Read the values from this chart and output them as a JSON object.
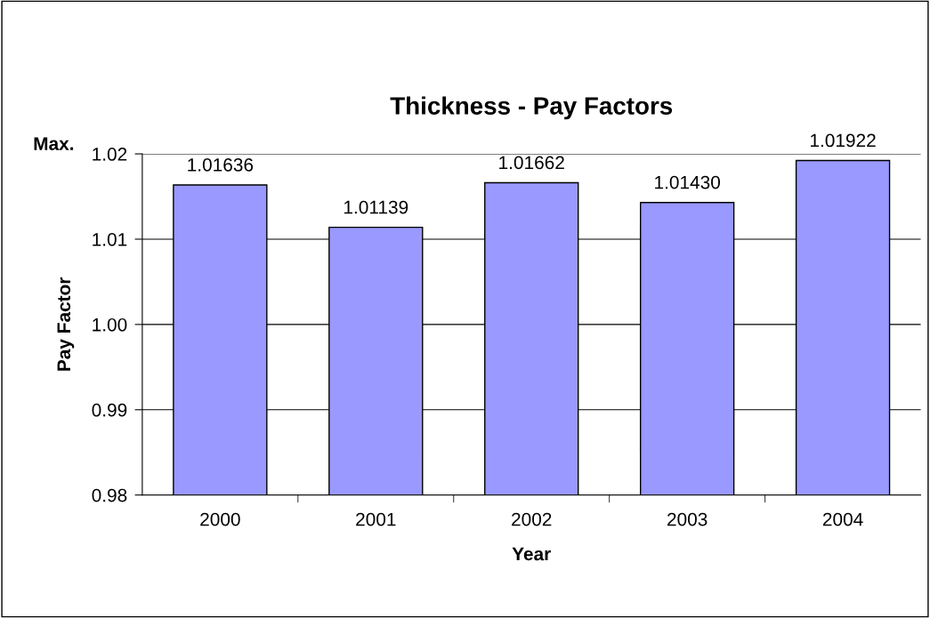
{
  "chart_data": {
    "type": "bar",
    "title": "Thickness - Pay Factors",
    "xlabel": "Year",
    "ylabel": "Pay Factor",
    "categories": [
      "2000",
      "2001",
      "2002",
      "2003",
      "2004"
    ],
    "values": [
      1.01636,
      1.01139,
      1.01662,
      1.0143,
      1.01922
    ],
    "value_labels": [
      "1.01636",
      "1.01139",
      "1.01662",
      "1.01430",
      "1.01922"
    ],
    "color": "#9999ff",
    "ylim": [
      0.98,
      1.02
    ],
    "yticks": [
      0.98,
      0.99,
      {
        "value": 1.0,
        "label": "1.00"
      },
      1.01,
      1.02
    ],
    "grid": "y",
    "annotations": [
      "Max."
    ]
  }
}
